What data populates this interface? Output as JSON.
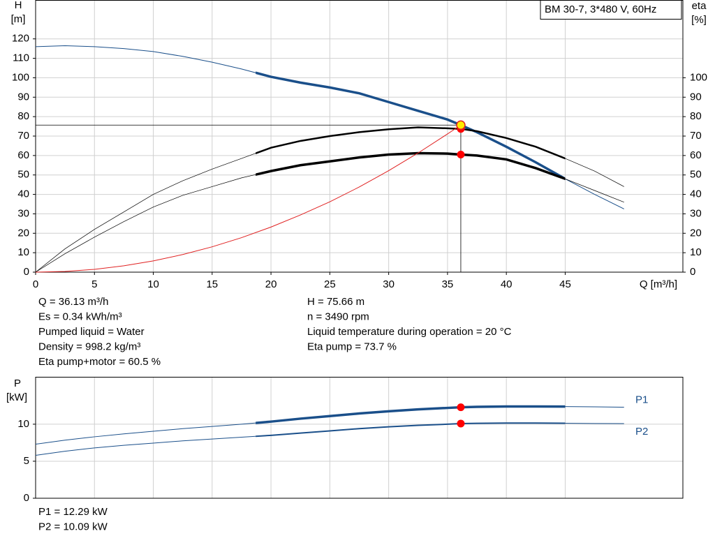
{
  "chart_data": [
    {
      "type": "line",
      "title": "BM 30-7, 3*480 V, 60Hz",
      "y_label": "H",
      "y_unit": "[m]",
      "y2_label": "eta",
      "y2_unit": "[%]",
      "x_label": "Q [m³/h]",
      "x": [
        0,
        2.5,
        5,
        7.5,
        10,
        12.5,
        15,
        17.5,
        20,
        22.5,
        25,
        27.5,
        30,
        32.5,
        35,
        36.13,
        37.5,
        40,
        42.5,
        45,
        47.5,
        50
      ],
      "xlim": [
        0,
        55
      ],
      "xticks": [
        0,
        5,
        10,
        15,
        20,
        25,
        30,
        35,
        40,
        45
      ],
      "ylim": [
        0,
        140
      ],
      "yticks": [
        0,
        10,
        20,
        30,
        40,
        50,
        60,
        70,
        80,
        90,
        100,
        110,
        120
      ],
      "y2lim": [
        0,
        140
      ],
      "y2ticks": [
        0,
        10,
        20,
        30,
        40,
        50,
        60,
        70,
        80,
        90,
        100
      ],
      "grid": true,
      "operating_range": [
        18.7,
        45
      ],
      "duty_point": {
        "x": 36.13,
        "y": 75.66
      },
      "series": [
        {
          "color": "#1a4f8a",
          "bold": 3.5,
          "values": [
            116,
            116.5,
            116,
            115,
            113.5,
            111,
            108,
            104.5,
            100.5,
            97.5,
            95,
            92,
            87.5,
            83,
            78.5,
            75.66,
            72,
            64.5,
            56.5,
            48,
            40,
            32.5
          ]
        },
        {
          "color": "#000000",
          "bold": 2.5,
          "axis": "y2",
          "values": [
            0,
            12,
            22,
            31,
            40,
            47,
            53,
            58.5,
            64,
            67.5,
            70,
            72,
            73.5,
            74.5,
            74,
            73.7,
            72.5,
            69,
            64.5,
            58.5,
            52,
            44
          ]
        },
        {
          "color": "#000000",
          "bold": 3.5,
          "axis": "y2",
          "values": [
            0,
            9.5,
            18,
            26,
            33.5,
            39.5,
            44,
            48.5,
            52,
            55,
            57,
            59,
            60.5,
            61.2,
            61,
            60.5,
            60,
            58,
            53.5,
            48,
            42,
            36
          ]
        },
        {
          "color": "#e02020",
          "values": [
            0,
            0.36,
            1.45,
            3.26,
            5.8,
            9.06,
            13.04,
            17.75,
            23.2,
            29.4,
            36.2,
            43.8,
            52.2,
            61.3,
            71.1,
            75.66,
            null,
            null,
            null,
            null,
            null,
            null
          ]
        }
      ],
      "info": [
        [
          "Q = 36.13 m³/h",
          "Es = 0.34 kWh/m³",
          "Pumped liquid = Water",
          "Density = 998.2 kg/m³",
          "Eta pump+motor = 60.5 %"
        ],
        [
          "H = 75.66 m",
          "n = 3490 rpm",
          "Liquid temperature during operation = 20 °C",
          "Eta pump = 73.7 %"
        ]
      ]
    },
    {
      "type": "line",
      "y_label": "P",
      "y_unit": "[kW]",
      "x": [
        0,
        2.5,
        5,
        7.5,
        10,
        12.5,
        15,
        17.5,
        20,
        22.5,
        25,
        27.5,
        30,
        32.5,
        35,
        36.13,
        37.5,
        40,
        42.5,
        45,
        47.5,
        50
      ],
      "xlim": [
        0,
        55
      ],
      "ylim": [
        0,
        16.4
      ],
      "yticks": [
        0,
        5,
        10
      ],
      "grid": true,
      "operating_range": [
        18.7,
        45
      ],
      "duty_point": {
        "x": 36.13
      },
      "series": [
        {
          "name": "P1",
          "color": "#1a4f8a",
          "bold": 3.5,
          "values": [
            7.3,
            7.85,
            8.3,
            8.7,
            9.05,
            9.4,
            9.7,
            10.0,
            10.35,
            10.75,
            11.1,
            11.45,
            11.75,
            12.0,
            12.2,
            12.29,
            12.35,
            12.4,
            12.4,
            12.38,
            12.35,
            12.3
          ]
        },
        {
          "name": "P2",
          "color": "#1a4f8a",
          "bold": 2,
          "values": [
            5.8,
            6.35,
            6.8,
            7.15,
            7.45,
            7.75,
            8.0,
            8.25,
            8.5,
            8.8,
            9.1,
            9.4,
            9.65,
            9.85,
            10.0,
            10.09,
            10.12,
            10.15,
            10.15,
            10.13,
            10.1,
            10.08
          ]
        }
      ],
      "info": [
        [
          "P1 = 12.29 kW",
          "P2 = 10.09 kW"
        ]
      ]
    }
  ]
}
